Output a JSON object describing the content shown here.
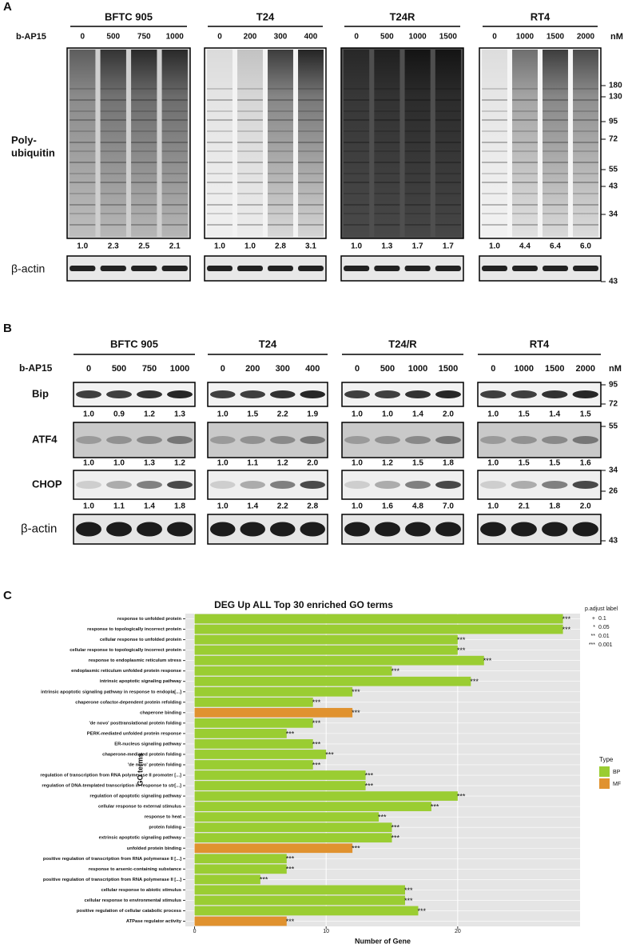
{
  "panel_a": {
    "label": "A",
    "treatment": "b-AP15",
    "unit": "nM",
    "blot_label": [
      "Poly-",
      "ubiquitin"
    ],
    "actin_label": "β-actin",
    "markers": [
      180,
      130,
      95,
      72,
      55,
      43,
      34
    ],
    "actin_marker": 43,
    "groups": [
      {
        "name": "BFTC 905",
        "doses": [
          0,
          500,
          750,
          1000
        ],
        "quant": [
          "1.0",
          "2.3",
          "2.5",
          "2.1"
        ]
      },
      {
        "name": "T24",
        "doses": [
          0,
          200,
          300,
          400
        ],
        "quant": [
          "1.0",
          "1.0",
          "2.8",
          "3.1"
        ]
      },
      {
        "name": "T24R",
        "doses": [
          0,
          500,
          1000,
          1500
        ],
        "quant": [
          "1.0",
          "1.3",
          "1.7",
          "1.7"
        ]
      },
      {
        "name": "RT4",
        "doses": [
          0,
          1000,
          1500,
          2000
        ],
        "quant": [
          "1.0",
          "4.4",
          "6.4",
          "6.0"
        ]
      }
    ]
  },
  "panel_b": {
    "label": "B",
    "treatment": "b-AP15",
    "unit": "nM",
    "groups": [
      {
        "name": "BFTC 905",
        "doses": [
          0,
          500,
          750,
          1000
        ]
      },
      {
        "name": "T24",
        "doses": [
          0,
          200,
          300,
          400
        ]
      },
      {
        "name": "T24/R",
        "doses": [
          0,
          500,
          1000,
          1500
        ]
      },
      {
        "name": "RT4",
        "doses": [
          0,
          1000,
          1500,
          2000
        ]
      }
    ],
    "rows": [
      {
        "label": "Bip",
        "markers": [
          95,
          72
        ],
        "quant": [
          [
            "1.0",
            "0.9",
            "1.2",
            "1.3"
          ],
          [
            "1.0",
            "1.5",
            "2.2",
            "1.9"
          ],
          [
            "1.0",
            "1.0",
            "1.4",
            "2.0"
          ],
          [
            "1.0",
            "1.5",
            "1.4",
            "1.5"
          ]
        ]
      },
      {
        "label": "ATF4",
        "markers": [
          55
        ],
        "quant": [
          [
            "1.0",
            "1.0",
            "1.3",
            "1.2"
          ],
          [
            "1.0",
            "1.1",
            "1.2",
            "2.0"
          ],
          [
            "1.0",
            "1.2",
            "1.5",
            "1.8"
          ],
          [
            "1.0",
            "1.5",
            "1.5",
            "1.6"
          ]
        ]
      },
      {
        "label": "CHOP",
        "markers": [
          34,
          26
        ],
        "quant": [
          [
            "1.0",
            "1.1",
            "1.4",
            "1.8"
          ],
          [
            "1.0",
            "1.4",
            "2.2",
            "2.8"
          ],
          [
            "1.0",
            "1.6",
            "4.8",
            "7.0"
          ],
          [
            "1.0",
            "2.1",
            "1.8",
            "2.0"
          ]
        ]
      },
      {
        "label": "β-actin",
        "markers": [
          43
        ]
      }
    ]
  },
  "chart_data": {
    "type": "bar",
    "orientation": "horizontal",
    "panel_label": "C",
    "title": "DEG Up ALL Top 30 enriched GO terms",
    "x_label": "Number of Gene",
    "y_label": "GO terms",
    "categories": [
      "response to unfolded protein",
      "response to topologically incorrect protein",
      "cellular response to unfolded protein",
      "cellular response to topologically incorrect protein",
      "response to endoplasmic reticulum stress",
      "endoplasmic reticulum unfolded protein response",
      "intrinsic apoptotic signaling pathway",
      "intrinsic apoptotic signaling pathway in response to endopla[...]",
      "chaperone cofactor-dependent protein refolding",
      "chaperone binding",
      "'de novo' posttranslational protein folding",
      "PERK-mediated unfolded protein response",
      "ER-nucleus signaling pathway",
      "chaperone-mediated protein folding",
      "'de novo' protein folding",
      "regulation of transcription from RNA polymerase II promoter [...]",
      "regulation of DNA-templated transcription in response to str[...]",
      "regulation of apoptotic signaling pathway",
      "cellular response to external stimulus",
      "response to heat",
      "protein folding",
      "extrinsic apoptotic signaling pathway",
      "unfolded protein binding",
      "positive regulation of transcription from RNA polymerase II [...]",
      "response to arsenic-containing substance",
      "positive regulation of transcription from RNA polymerase II [...]",
      "cellular response to abiotic stimulus",
      "cellular response to environmental stimulus",
      "positive regulation of cellular catabolic process",
      "ATPase regulator activity"
    ],
    "values": [
      28,
      28,
      20,
      20,
      22,
      15,
      21,
      12,
      9,
      12,
      9,
      7,
      9,
      10,
      9,
      13,
      13,
      20,
      18,
      14,
      15,
      15,
      12,
      7,
      7,
      5,
      16,
      16,
      17,
      7
    ],
    "value_labels": [
      "***",
      "***",
      "***",
      "***",
      "***",
      "***",
      "***",
      "***",
      "***",
      "***",
      "***",
      "***",
      "***",
      "***",
      "***",
      "***",
      "***",
      "***",
      "***",
      "***",
      "***",
      "***",
      "***",
      "***",
      "***",
      "***",
      "***",
      "***",
      "***",
      "***"
    ],
    "types": [
      "BP",
      "BP",
      "BP",
      "BP",
      "BP",
      "BP",
      "BP",
      "BP",
      "BP",
      "MF",
      "BP",
      "BP",
      "BP",
      "BP",
      "BP",
      "BP",
      "BP",
      "BP",
      "BP",
      "BP",
      "BP",
      "BP",
      "MF",
      "BP",
      "BP",
      "BP",
      "BP",
      "BP",
      "BP",
      "MF"
    ],
    "xlim": [
      -0.7,
      29.3
    ],
    "xticks": [
      0,
      10,
      20
    ],
    "grid": true,
    "legend": {
      "title": "Type",
      "entries": [
        {
          "name": "BP",
          "color": "#9acd32"
        },
        {
          "name": "MF",
          "color": "#e0922f"
        }
      ]
    },
    "p_adjust_legend": {
      "title": "p.adjust label",
      "entries": [
        {
          "symbol": "+",
          "value": 0.1
        },
        {
          "symbol": "*",
          "value": 0.05
        },
        {
          "symbol": "**",
          "value": 0.01
        },
        {
          "symbol": "***",
          "value": 0.001
        }
      ]
    }
  }
}
